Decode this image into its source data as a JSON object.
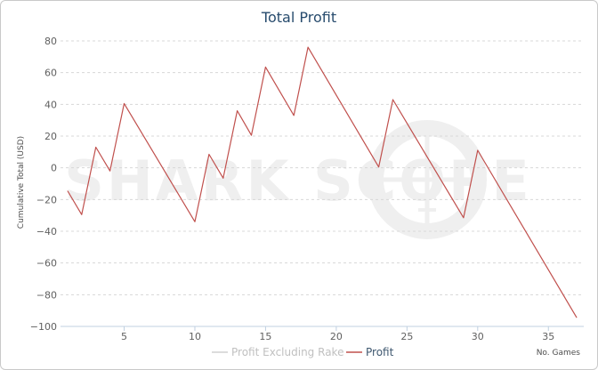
{
  "chart_data": {
    "type": "line",
    "title": "Total Profit",
    "xlabel": "No. Games",
    "ylabel": "Cumulative Total (USD)",
    "watermark": "SHARK SCOPE",
    "xlim": [
      0.5,
      37.5
    ],
    "ylim": [
      -100,
      80
    ],
    "x_ticks": [
      5,
      10,
      15,
      20,
      25,
      30,
      35
    ],
    "y_ticks": [
      80,
      60,
      40,
      20,
      0,
      -20,
      -40,
      -60,
      -80,
      -100
    ],
    "y_tick_labels": [
      "80",
      "60",
      "40",
      "20",
      "0",
      "−20",
      "−40",
      "−60",
      "−80",
      "−100"
    ],
    "grid": "horizontal-dashed",
    "legend_position": "bottom-center",
    "series": [
      {
        "name": "Profit Excluding Rake",
        "color": "#d0d0d0",
        "values": []
      },
      {
        "name": "Profit",
        "color": "#c0504d",
        "x": [
          1,
          2,
          3,
          4,
          5,
          10,
          11,
          12,
          13,
          14,
          15,
          17,
          18,
          23,
          24,
          29,
          30,
          37
        ],
        "values": [
          -14.5,
          -29.5,
          13,
          -2,
          40.5,
          -34,
          8.5,
          -6.5,
          36,
          20.5,
          63.5,
          33,
          76,
          0.5,
          43,
          -31.5,
          11,
          -94.5
        ]
      }
    ]
  }
}
